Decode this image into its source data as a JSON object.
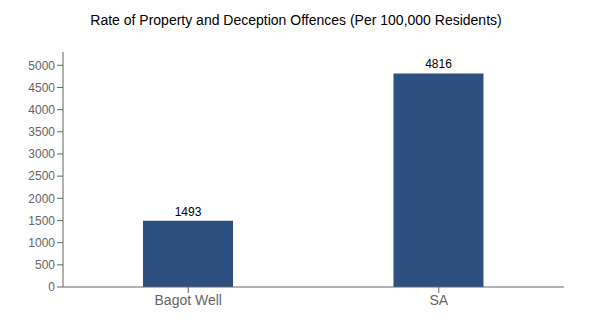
{
  "chart_data": {
    "type": "bar",
    "title": "Rate of Property and Deception Offences (Per 100,000 Residents)",
    "categories": [
      "Bagot Well",
      "SA"
    ],
    "values": [
      1493,
      4816
    ],
    "colors": [
      "#2d5080",
      "#2d5080"
    ],
    "ylim": [
      0,
      5300
    ],
    "yticks": [
      0,
      500,
      1000,
      1500,
      2000,
      2500,
      3000,
      3500,
      4000,
      4500,
      5000
    ],
    "data_labels": true
  }
}
